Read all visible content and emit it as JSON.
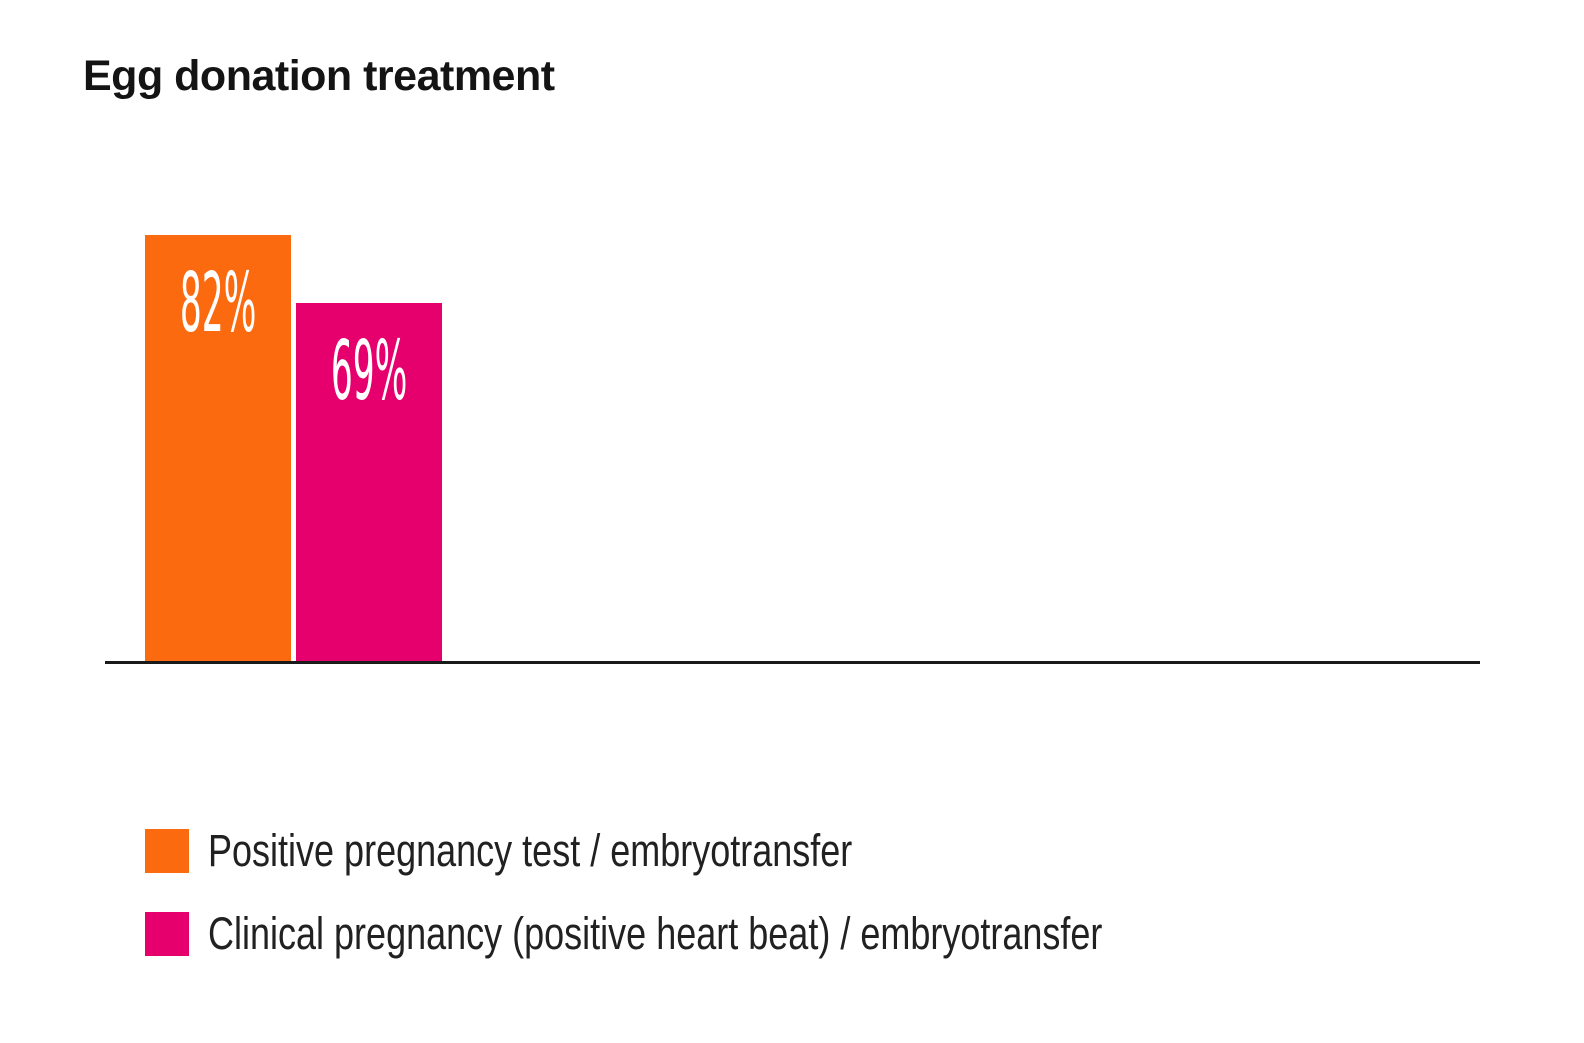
{
  "title": "Egg donation treatment",
  "chart_data": {
    "type": "bar",
    "title": "Egg donation treatment",
    "categories": [
      "Positive pregnancy test / embryotransfer",
      "Clinical pregnancy (positive heart beat) / embryotransfer"
    ],
    "values": [
      82,
      69
    ],
    "value_labels": [
      "82%",
      "69%"
    ],
    "bar_colors": [
      "#FC6A0F",
      "#E5006D"
    ],
    "value_label_color": "#FFFFFF",
    "xlabel": "",
    "ylabel": "",
    "ylim": [
      0,
      100
    ],
    "grid": false,
    "axis_line_color": "#1A1A1A",
    "legend_position": "bottom",
    "background_color": "#FFFFFF",
    "title_color": "#141414"
  },
  "legend": {
    "items": [
      {
        "label": "Positive pregnancy test / embryotransfer",
        "color": "#FC6A0F"
      },
      {
        "label": "Clinical pregnancy (positive heart beat) / embryotransfer",
        "color": "#E5006D"
      }
    ]
  }
}
